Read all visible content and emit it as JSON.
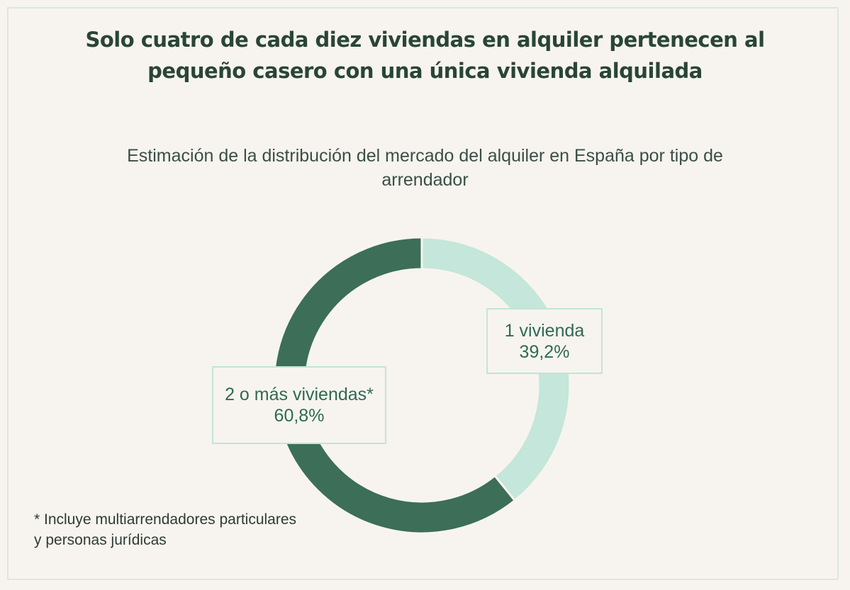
{
  "title": "Solo cuatro de cada diez viviendas en alquiler pertenecen al pequeño casero con una única vivienda alquilada",
  "subtitle": "Estimación de la distribución del mercado del alquiler en España por tipo de arrendador",
  "footnote": "* Incluye multiarrendadores particulares y personas jurídicas",
  "colors": {
    "background": "#f7f4ef",
    "one_dwelling": "#c5e6da",
    "two_plus": "#3c6e58",
    "title": "#2a4535",
    "label_text": "#2f6a52",
    "label_border": "#c3e4d7"
  },
  "chart_data": {
    "type": "pie",
    "donut": true,
    "title": "Solo cuatro de cada diez viviendas en alquiler pertenecen al pequeño casero con una única vivienda alquilada",
    "subtitle": "Estimación de la distribución del mercado del alquiler en España por tipo de arrendador",
    "slices": [
      {
        "label": "1 vivienda",
        "value": 39.2,
        "value_label": "39,2%",
        "color": "#c5e6da"
      },
      {
        "label": "2 o más viviendas*",
        "value": 60.8,
        "value_label": "60,8%",
        "color": "#3c6e58"
      }
    ],
    "legend": "none",
    "annotations": [
      "* Incluye multiarrendadores particulares y personas jurídicas"
    ]
  }
}
